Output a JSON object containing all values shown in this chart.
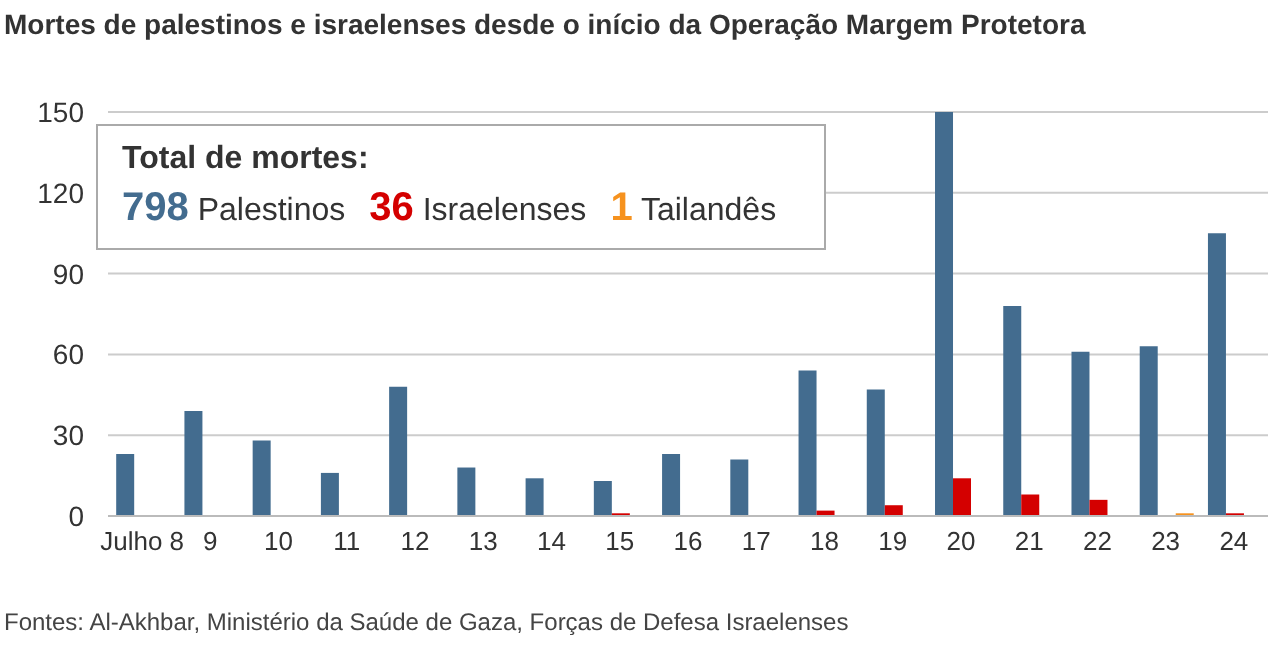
{
  "chart_data": {
    "type": "bar",
    "title": "Mortes de palestinos e israelenses desde o início da Operação Margem Protetora",
    "legend_title": "Total de mortes:",
    "categories": [
      "Julho 8",
      "9",
      "10",
      "11",
      "12",
      "13",
      "14",
      "15",
      "16",
      "17",
      "18",
      "19",
      "20",
      "21",
      "22",
      "23",
      "24"
    ],
    "series": [
      {
        "name": "798 Palestinos",
        "color": "#436c8f",
        "values": [
          23,
          39,
          28,
          16,
          48,
          18,
          14,
          13,
          23,
          21,
          54,
          47,
          150,
          78,
          61,
          63,
          105
        ]
      },
      {
        "name": "36 Israelenses",
        "color": "#d40000",
        "values": [
          0,
          0,
          0,
          0,
          0,
          0,
          0,
          1,
          0,
          0,
          2,
          4,
          14,
          8,
          6,
          0,
          1
        ]
      },
      {
        "name": "1 Tailandês",
        "color": "#f6921e",
        "values": [
          0,
          0,
          0,
          0,
          0,
          0,
          0,
          0,
          0,
          0,
          0,
          0,
          0,
          0,
          0,
          1,
          0
        ]
      }
    ],
    "ylim": [
      0,
      150
    ],
    "yticks": [
      0,
      30,
      60,
      90,
      120,
      150
    ],
    "grid": "y",
    "legend": "top left",
    "annotations": [
      "Fontes: Al-Akhbar, Ministério da Saúde de Gaza, Forças de Defesa Israelenses"
    ]
  }
}
